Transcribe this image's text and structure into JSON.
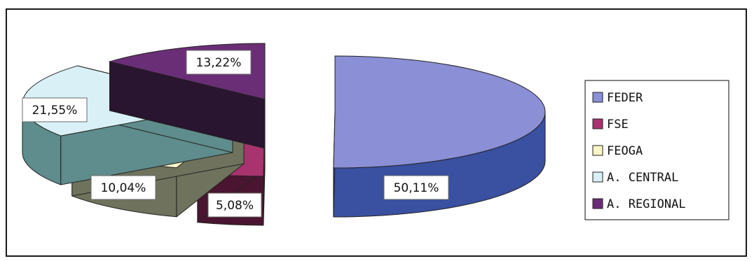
{
  "chart_data": {
    "type": "pie",
    "style": "exploded 3D pie",
    "slices": [
      {
        "name": "FEDER",
        "value": 50.11,
        "label": "50,11%",
        "color": "#8a8fd6",
        "side": "#3a50a0"
      },
      {
        "name": "FSE",
        "value": 5.08,
        "label": "5,08%",
        "color": "#a8336e",
        "side": "#4a1530"
      },
      {
        "name": "FEOGA",
        "value": 10.04,
        "label": "10,04%",
        "color": "#fbf7c8",
        "side": "#6f725c"
      },
      {
        "name": "A. CENTRAL",
        "value": 21.55,
        "label": "21,55%",
        "color": "#d9f1f6",
        "side": "#5f8c8c"
      },
      {
        "name": "A. REGIONAL",
        "value": 13.22,
        "label": "13,22%",
        "color": "#6a2e76",
        "side": "#2a1530"
      }
    ],
    "legend": {
      "placement": "right",
      "entries": [
        "FEDER",
        "FSE",
        "FEOGA",
        "A. CENTRAL",
        "A. REGIONAL"
      ]
    }
  }
}
